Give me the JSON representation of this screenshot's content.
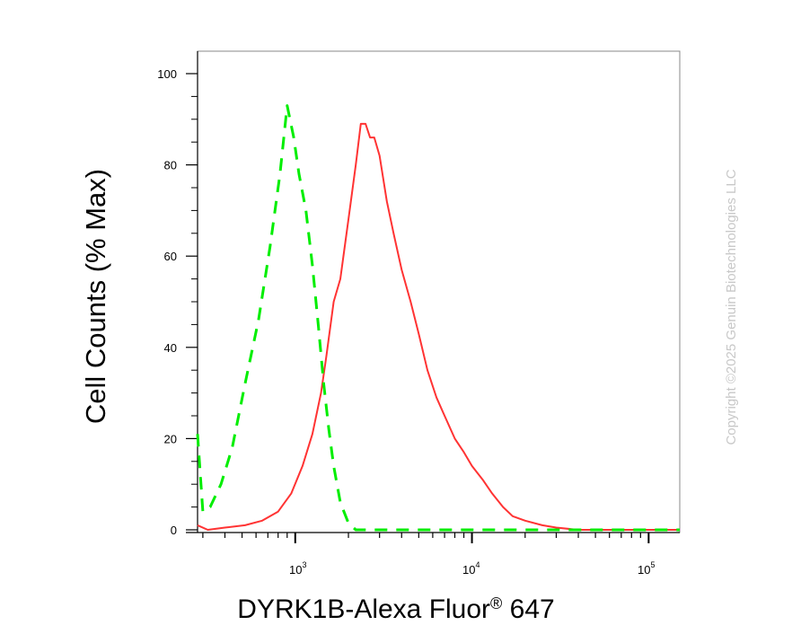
{
  "chart_data": {
    "type": "line",
    "xlabel": "DYRK1B-Alexa Fluor",
    "xlabel_super": "®",
    "xlabel_tail": " 647",
    "ylabel": "Cell Counts (% Max)",
    "x_scale": "log",
    "xlim": [
      280,
      150000
    ],
    "ylim": [
      0,
      100
    ],
    "y_ticks": [
      "0",
      "20",
      "40",
      "60",
      "80",
      "100"
    ],
    "x_ticks": [
      {
        "base": "10",
        "exp": "3"
      },
      {
        "base": "10",
        "exp": "4"
      },
      {
        "base": "10",
        "exp": "5"
      }
    ],
    "series": [
      {
        "color": "#ff3333",
        "style": "solid",
        "x": [
          280,
          320,
          400,
          520,
          650,
          800,
          950,
          1100,
          1250,
          1400,
          1500,
          1650,
          1800,
          2000,
          2200,
          2350,
          2500,
          2650,
          2800,
          3000,
          3300,
          3600,
          4000,
          4500,
          5000,
          5600,
          6300,
          7000,
          8000,
          9000,
          10000,
          11500,
          13000,
          15000,
          17000,
          20000,
          25000,
          30000,
          40000,
          60000,
          100000,
          150000
        ],
        "y": [
          1,
          0,
          0.5,
          1,
          2,
          4,
          8,
          14,
          21,
          30,
          38,
          50,
          55,
          68,
          80,
          89,
          89,
          86,
          86,
          82,
          72,
          65,
          57,
          50,
          43,
          35,
          29,
          25,
          20,
          17,
          14,
          11,
          8,
          5,
          3,
          2,
          1,
          0.5,
          0,
          0,
          0,
          0
        ]
      },
      {
        "color": "#00ee00",
        "style": "dashed",
        "x": [
          280,
          300,
          330,
          380,
          440,
          520,
          620,
          720,
          820,
          900,
          980,
          1050,
          1150,
          1250,
          1350,
          1450,
          1550,
          1650,
          1800,
          2000,
          2200,
          3000,
          5000,
          10000,
          50000,
          150000
        ],
        "y": [
          21,
          4,
          5,
          10,
          18,
          32,
          46,
          62,
          78,
          93,
          86,
          78,
          70,
          58,
          45,
          32,
          22,
          14,
          6,
          1.5,
          0,
          0,
          0,
          0,
          0,
          0
        ]
      }
    ]
  },
  "watermark": "Copyright ©2025 Genuin Biotechnologies LLC"
}
